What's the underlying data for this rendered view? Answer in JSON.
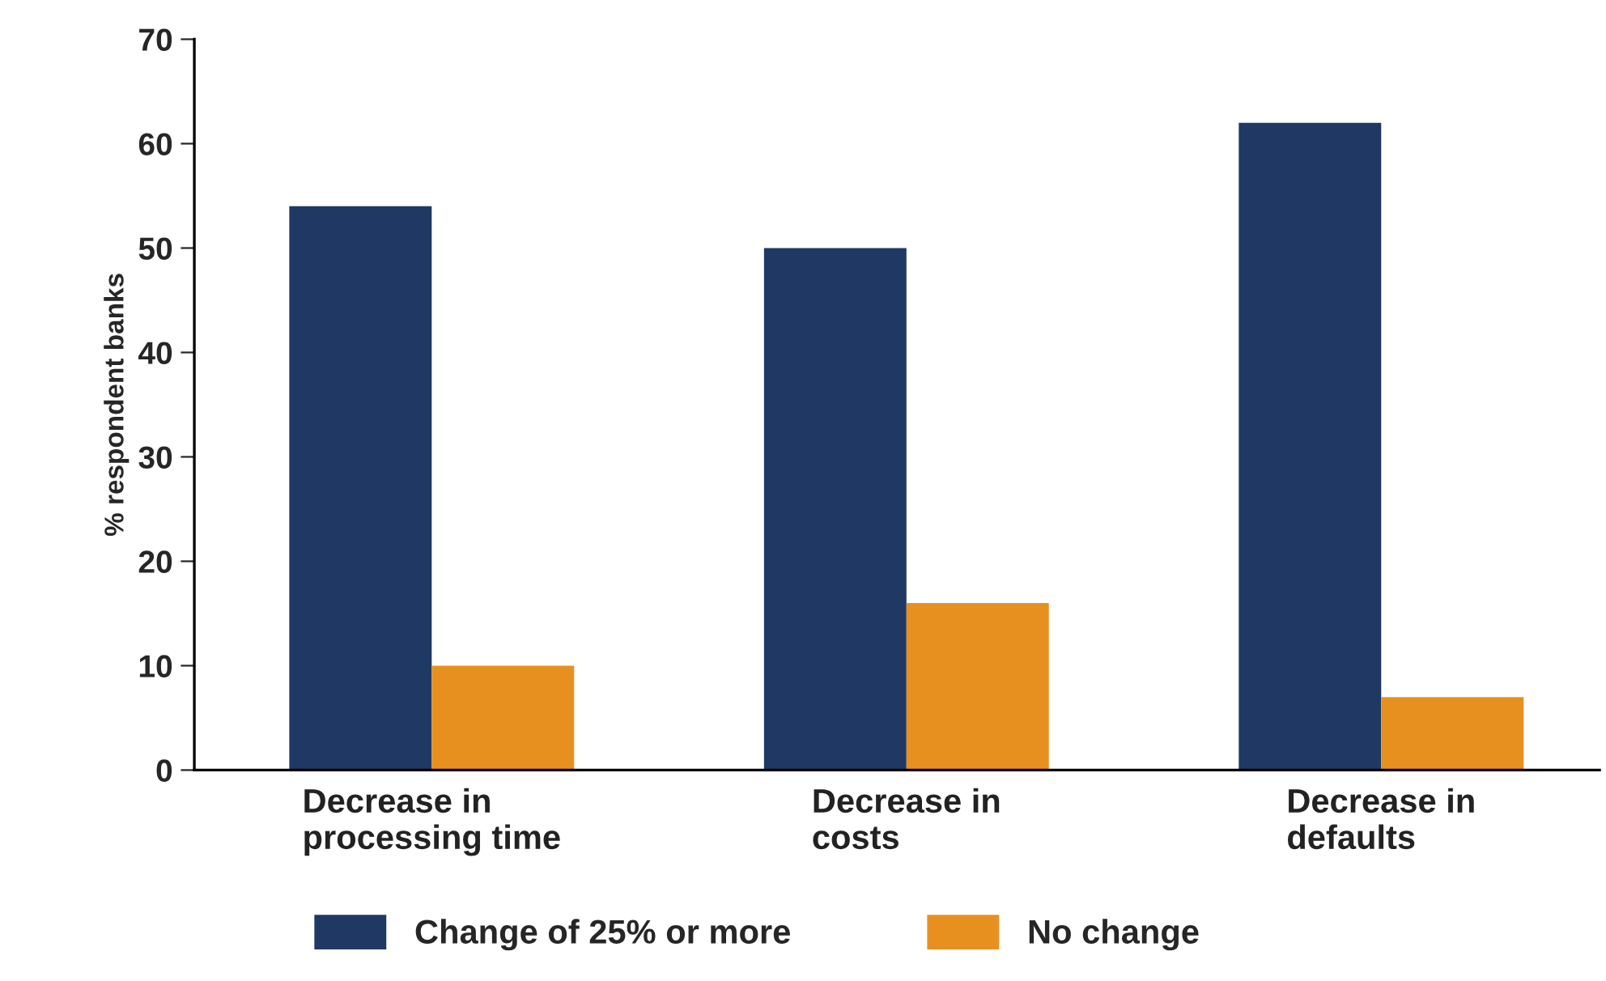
{
  "chart_data": {
    "type": "bar",
    "ylabel": "% respondent banks",
    "categories": [
      "Decrease in\nprocessing time",
      "Decrease in\ncosts",
      "Decrease in\ndefaults"
    ],
    "series": [
      {
        "name": "Change of 25% or more",
        "color": "#1f3864",
        "values": [
          54,
          50,
          62
        ]
      },
      {
        "name": "No change",
        "color": "#e8901f",
        "values": [
          10,
          16,
          7
        ]
      }
    ],
    "ylim": [
      0,
      70
    ],
    "yticks": [
      0,
      10,
      20,
      30,
      40,
      50,
      60,
      70
    ],
    "grid": false,
    "legend": "bottom"
  }
}
